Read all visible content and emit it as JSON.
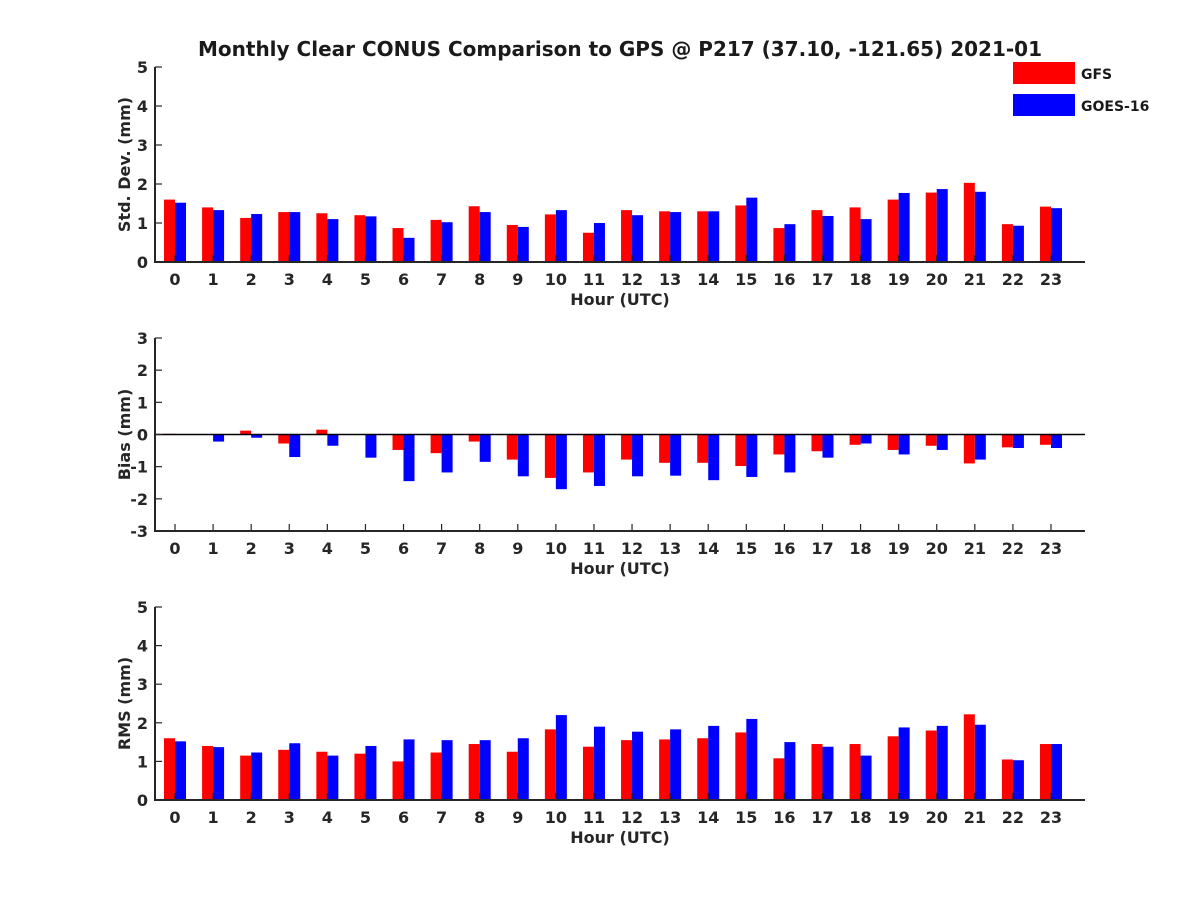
{
  "colors": {
    "gfs": "#ff0000",
    "goes": "#0000ff",
    "axis": "#262626"
  },
  "chart_data": {
    "type": "bar",
    "title": "Monthly Clear CONUS Comparison to GPS @ P217 (37.10, -121.65) 2021-01",
    "legend": {
      "position": "top-right",
      "entries": [
        "GFS",
        "GOES-16"
      ]
    },
    "categories": [
      "0",
      "1",
      "2",
      "3",
      "4",
      "5",
      "6",
      "7",
      "8",
      "9",
      "10",
      "11",
      "12",
      "13",
      "14",
      "15",
      "16",
      "17",
      "18",
      "19",
      "20",
      "21",
      "22",
      "23"
    ],
    "panels": [
      {
        "name": "std-dev",
        "xlabel": "Hour (UTC)",
        "ylabel": "Std. Dev. (mm)",
        "ylim": [
          0,
          5
        ],
        "yticks": [
          0,
          1,
          2,
          3,
          4,
          5
        ],
        "series": [
          {
            "name": "GFS",
            "values": [
              1.6,
              1.4,
              1.13,
              1.28,
              1.25,
              1.2,
              0.87,
              1.08,
              1.43,
              0.95,
              1.22,
              0.75,
              1.33,
              1.3,
              1.3,
              1.45,
              0.87,
              1.33,
              1.4,
              1.6,
              1.78,
              2.03,
              0.97,
              1.42
            ]
          },
          {
            "name": "GOES-16",
            "values": [
              1.52,
              1.33,
              1.23,
              1.28,
              1.1,
              1.17,
              0.62,
              1.02,
              1.28,
              0.9,
              1.33,
              1.0,
              1.2,
              1.28,
              1.3,
              1.65,
              0.97,
              1.18,
              1.1,
              1.77,
              1.87,
              1.8,
              0.93,
              1.38
            ]
          }
        ]
      },
      {
        "name": "bias",
        "xlabel": "Hour (UTC)",
        "ylabel": "Bias (mm)",
        "ylim": [
          -3,
          3
        ],
        "yticks": [
          -3,
          -2,
          -1,
          0,
          1,
          2,
          3
        ],
        "series": [
          {
            "name": "GFS",
            "values": [
              0.02,
              0.0,
              0.12,
              -0.28,
              0.15,
              0.0,
              -0.48,
              -0.58,
              -0.22,
              -0.78,
              -1.35,
              -1.18,
              -0.78,
              -0.88,
              -0.88,
              -0.98,
              -0.62,
              -0.52,
              -0.32,
              -0.48,
              -0.35,
              -0.9,
              -0.4,
              -0.32
            ]
          },
          {
            "name": "GOES-16",
            "values": [
              0.0,
              -0.22,
              -0.1,
              -0.7,
              -0.35,
              -0.72,
              -1.45,
              -1.18,
              -0.85,
              -1.3,
              -1.7,
              -1.6,
              -1.3,
              -1.28,
              -1.42,
              -1.32,
              -1.18,
              -0.72,
              -0.28,
              -0.62,
              -0.48,
              -0.78,
              -0.42,
              -0.42
            ]
          }
        ]
      },
      {
        "name": "rms",
        "xlabel": "Hour (UTC)",
        "ylabel": "RMS (mm)",
        "ylim": [
          0,
          5
        ],
        "yticks": [
          0,
          1,
          2,
          3,
          4,
          5
        ],
        "series": [
          {
            "name": "GFS",
            "values": [
              1.6,
              1.4,
              1.15,
              1.3,
              1.25,
              1.2,
              1.0,
              1.23,
              1.45,
              1.25,
              1.83,
              1.38,
              1.55,
              1.57,
              1.6,
              1.75,
              1.08,
              1.45,
              1.45,
              1.65,
              1.8,
              2.22,
              1.05,
              1.45
            ]
          },
          {
            "name": "GOES-16",
            "values": [
              1.52,
              1.37,
              1.23,
              1.47,
              1.15,
              1.4,
              1.57,
              1.55,
              1.55,
              1.6,
              2.2,
              1.9,
              1.77,
              1.83,
              1.92,
              2.1,
              1.5,
              1.38,
              1.15,
              1.88,
              1.92,
              1.95,
              1.03,
              1.45
            ]
          }
        ]
      }
    ]
  }
}
